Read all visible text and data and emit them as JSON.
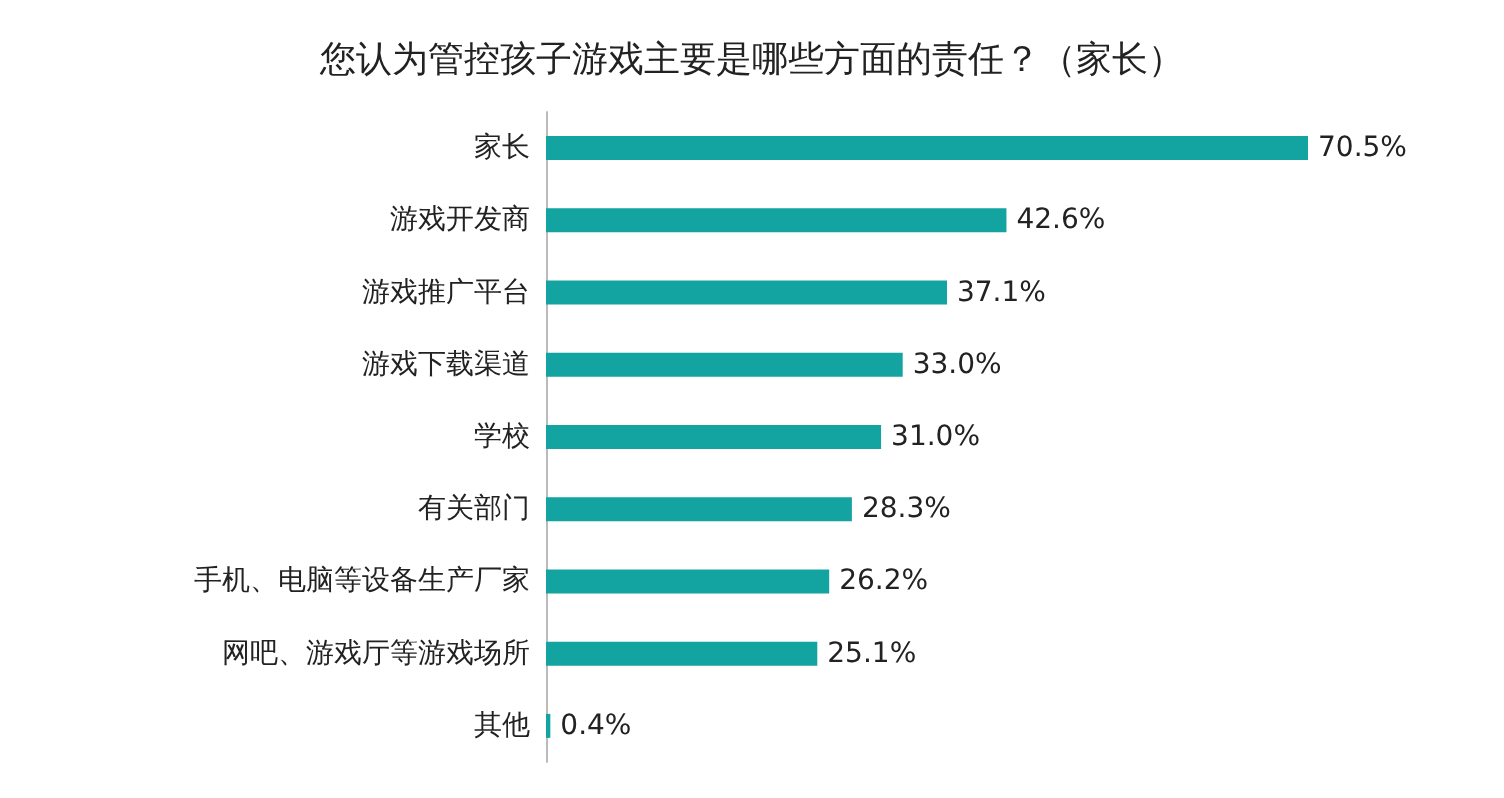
{
  "chart_data": {
    "type": "bar",
    "orientation": "horizontal",
    "title": "您认为管控孩子游戏主要是哪些方面的责任？（家长）",
    "categories": [
      "家长",
      "游戏开发商",
      "游戏推广平台",
      "游戏下载渠道",
      "学校",
      "有关部门",
      "手机、电脑等设备生产厂家",
      "网吧、游戏厅等游戏场所",
      "其他"
    ],
    "values": [
      70.5,
      42.6,
      37.1,
      33.0,
      31.0,
      28.3,
      26.2,
      25.1,
      0.4
    ],
    "value_labels": [
      "70.5%",
      "42.6%",
      "37.1%",
      "33.0%",
      "31.0%",
      "28.3%",
      "26.2%",
      "25.1%",
      "0.4%"
    ],
    "color": "#13a3a0",
    "grid": false
  }
}
